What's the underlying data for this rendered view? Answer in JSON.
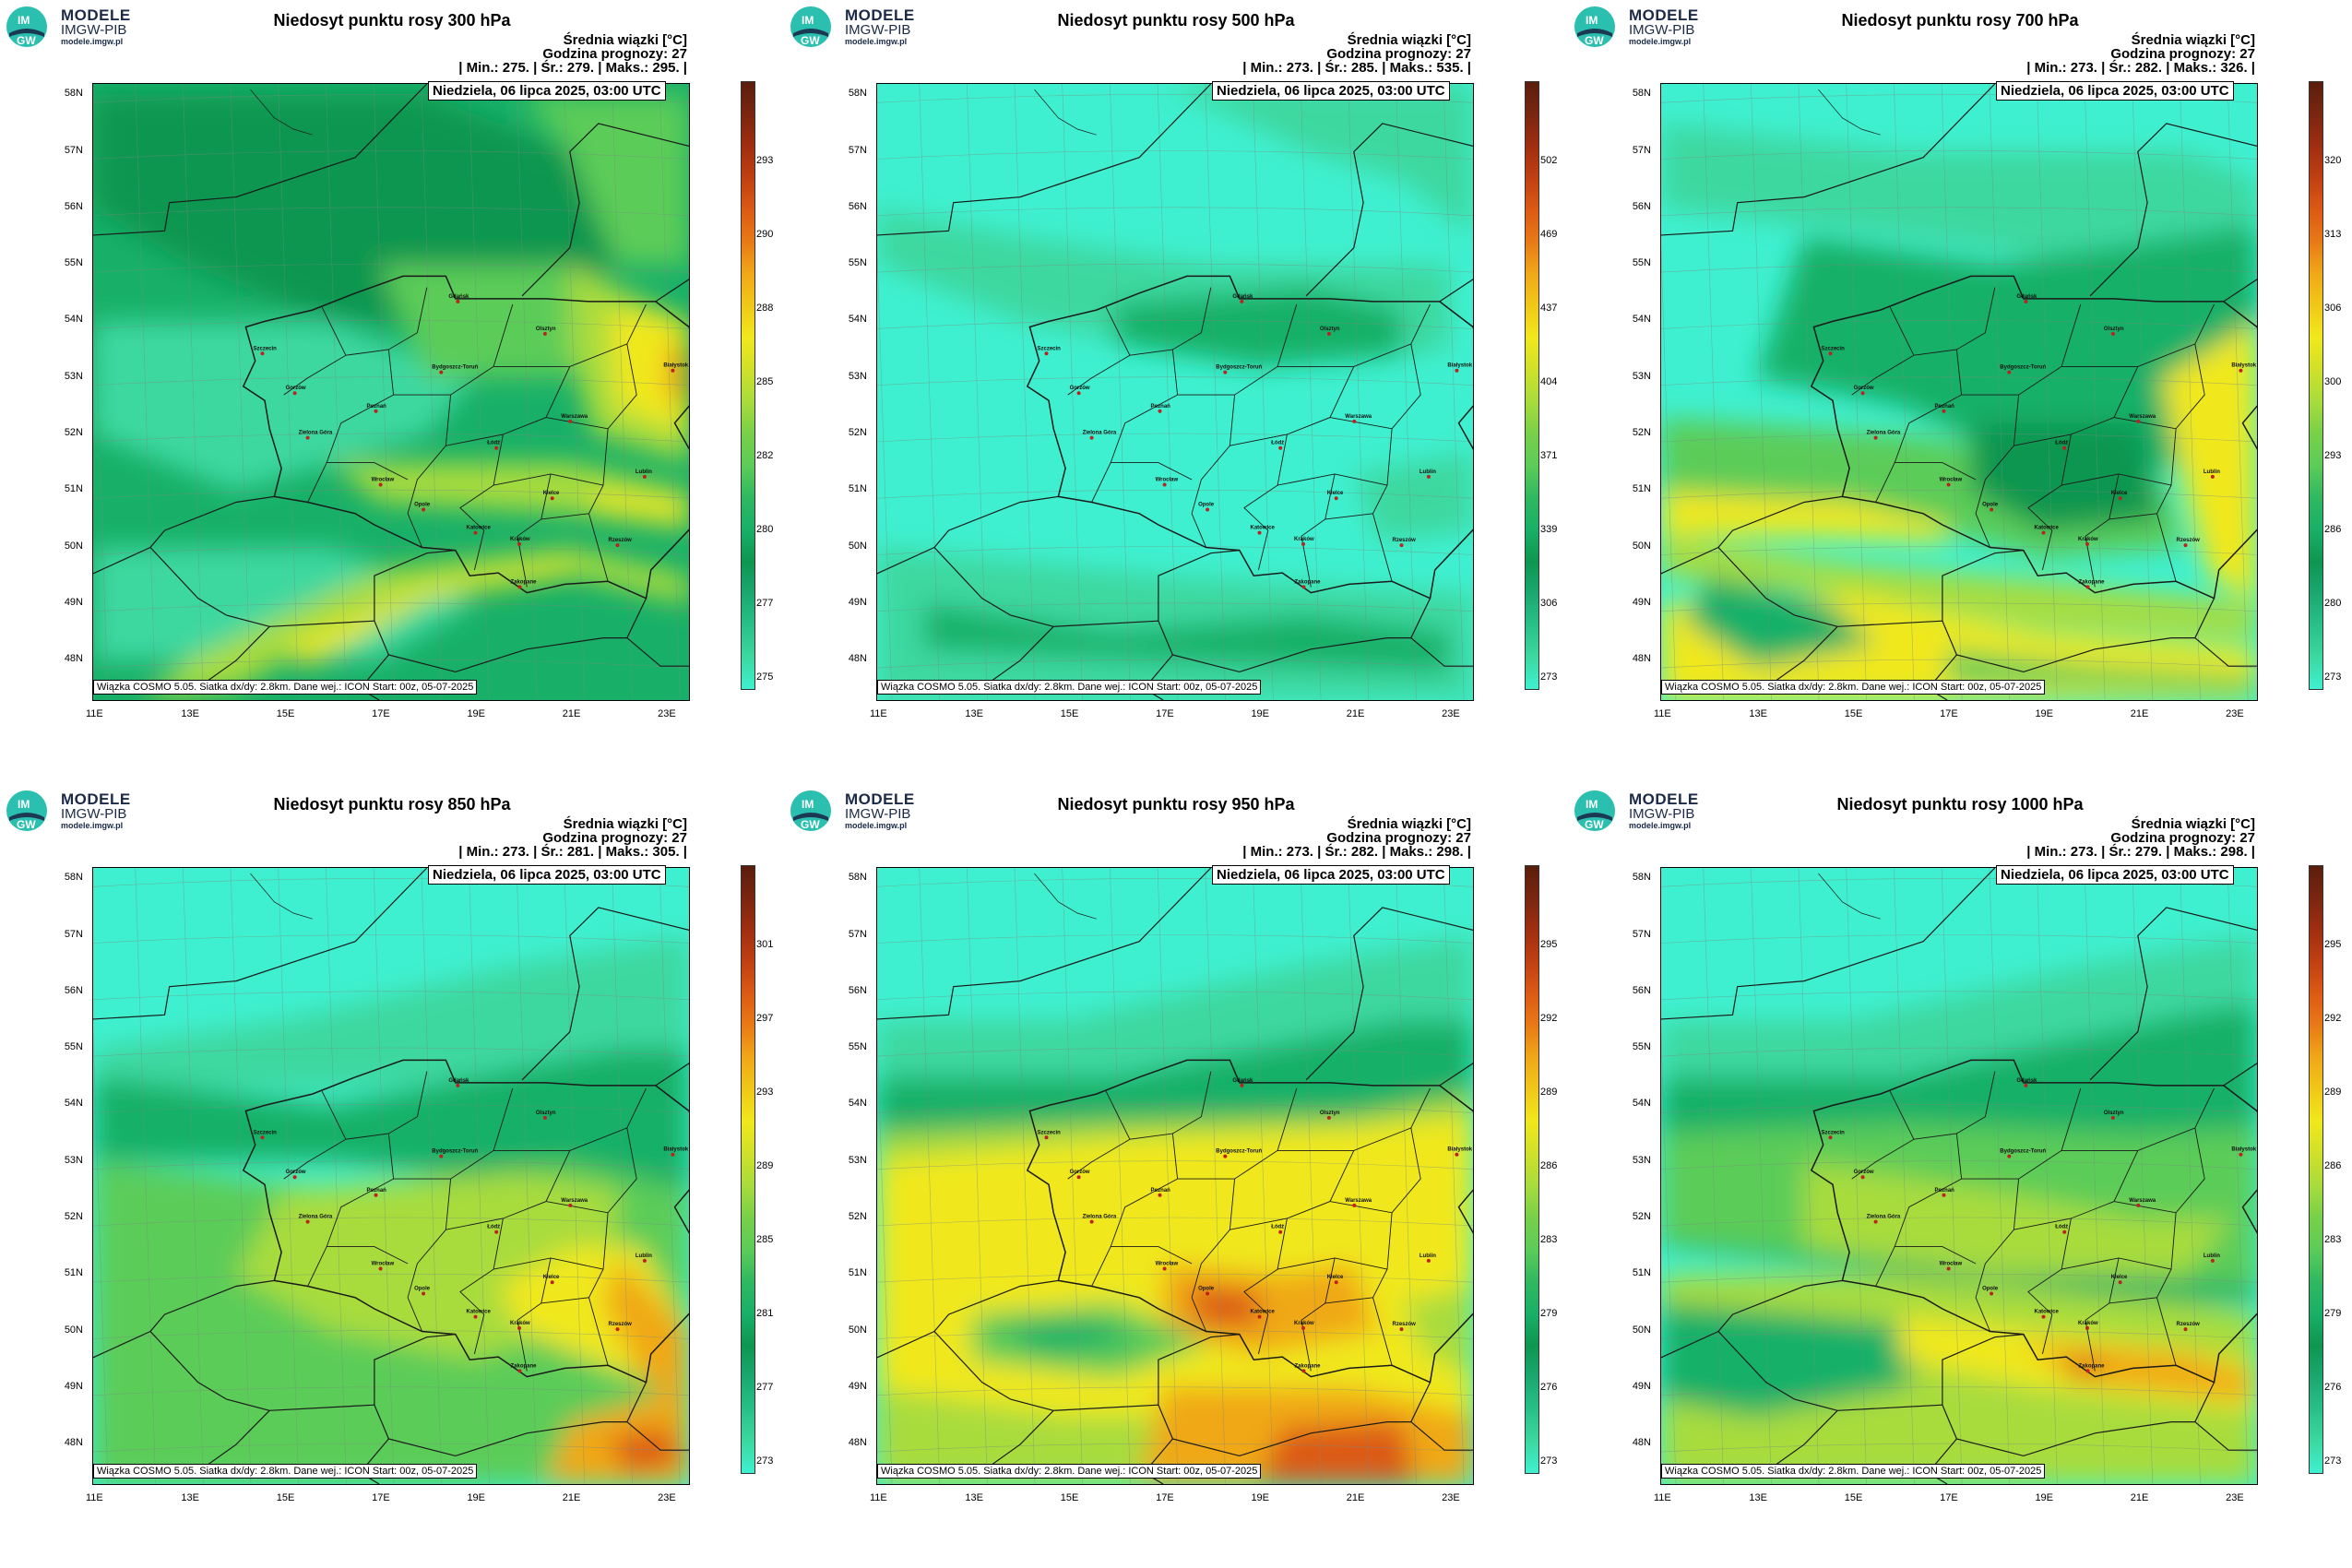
{
  "logo": {
    "mark_top": "IM",
    "mark_bottom": "GW",
    "title": "MODELE",
    "subtitle": "IMGW-PIB",
    "url": "modele.imgw.pl"
  },
  "common": {
    "date": "Niedziela, 06 lipca 2025, 03:00 UTC",
    "unit_line": "Średnia wiązki [°C]",
    "forecast_hour": "Godzina prognozy: 27",
    "footer": "Wiązka COSMO 5.05. Siatka dx/dy: 2.8km. Dane wej.: ICON Start: 00z, 05-07-2025",
    "lat_labels": [
      "58N",
      "57N",
      "56N",
      "55N",
      "54N",
      "53N",
      "52N",
      "51N",
      "50N",
      "49N",
      "48N"
    ],
    "lon_labels": [
      "11E",
      "13E",
      "15E",
      "17E",
      "19E",
      "21E",
      "23E"
    ]
  },
  "cities": [
    {
      "name": "Gdańsk",
      "lon": 18.65,
      "lat": 54.35
    },
    {
      "name": "Olsztyn",
      "lon": 20.48,
      "lat": 53.78
    },
    {
      "name": "Białystok",
      "lon": 23.16,
      "lat": 53.13
    },
    {
      "name": "Szczecin",
      "lon": 14.55,
      "lat": 53.43
    },
    {
      "name": "Bydgoszcz-Toruń",
      "lon": 18.3,
      "lat": 53.1
    },
    {
      "name": "Gorzów",
      "lon": 15.23,
      "lat": 52.73
    },
    {
      "name": "Poznań",
      "lon": 16.93,
      "lat": 52.41
    },
    {
      "name": "Warszawa",
      "lon": 21.01,
      "lat": 52.23
    },
    {
      "name": "Zielona Góra",
      "lon": 15.5,
      "lat": 51.94
    },
    {
      "name": "Łódź",
      "lon": 19.46,
      "lat": 51.76
    },
    {
      "name": "Lublin",
      "lon": 22.57,
      "lat": 51.25
    },
    {
      "name": "Wrocław",
      "lon": 17.03,
      "lat": 51.11
    },
    {
      "name": "Kielce",
      "lon": 20.63,
      "lat": 50.87
    },
    {
      "name": "Opole",
      "lon": 17.93,
      "lat": 50.67
    },
    {
      "name": "Katowice",
      "lon": 19.02,
      "lat": 50.26
    },
    {
      "name": "Kraków",
      "lon": 19.94,
      "lat": 50.06
    },
    {
      "name": "Rzeszów",
      "lon": 22.0,
      "lat": 50.04
    },
    {
      "name": "Zakopane",
      "lon": 19.95,
      "lat": 49.3
    }
  ],
  "panels": [
    {
      "title": "Niedosyt punktu rosy 300 hPa",
      "stats": "| Min.: 275. | Śr.: 279. | Maks.: 295. |",
      "cbar_ticks": [
        "293",
        "290",
        "288",
        "285",
        "282",
        "280",
        "277",
        "275"
      ],
      "scheme": "p300"
    },
    {
      "title": "Niedosyt punktu rosy 500 hPa",
      "stats": "| Min.: 273. | Śr.: 285. | Maks.: 535. |",
      "cbar_ticks": [
        "502",
        "469",
        "437",
        "404",
        "371",
        "339",
        "306",
        "273"
      ],
      "scheme": "p500"
    },
    {
      "title": "Niedosyt punktu rosy 700 hPa",
      "stats": "| Min.: 273. | Śr.: 282. | Maks.: 326. |",
      "cbar_ticks": [
        "320",
        "313",
        "306",
        "300",
        "293",
        "286",
        "280",
        "273"
      ],
      "scheme": "p700"
    },
    {
      "title": "Niedosyt punktu rosy 850 hPa",
      "stats": "| Min.: 273. | Śr.: 281. | Maks.: 305. |",
      "cbar_ticks": [
        "301",
        "297",
        "293",
        "289",
        "285",
        "281",
        "277",
        "273"
      ],
      "scheme": "p850"
    },
    {
      "title": "Niedosyt punktu rosy 950 hPa",
      "stats": "| Min.: 273. | Śr.: 282. | Maks.: 298. |",
      "cbar_ticks": [
        "295",
        "292",
        "289",
        "286",
        "283",
        "279",
        "276",
        "273"
      ],
      "scheme": "p950"
    },
    {
      "title": "Niedosyt punktu rosy 1000 hPa",
      "stats": "| Min.: 273. | Śr.: 279. | Maks.: 298. |",
      "cbar_ticks": [
        "295",
        "292",
        "289",
        "286",
        "283",
        "279",
        "276",
        "273"
      ],
      "scheme": "p1000"
    }
  ],
  "palette": {
    "cyan": "#3ff0d0",
    "teal": "#3cd8a0",
    "green": "#18b068",
    "green_dark": "#0e9650",
    "green_light": "#5ccc58",
    "lime": "#a8dc3c",
    "yellow": "#f0e81c",
    "orange": "#f0a818",
    "red": "#dc5a14",
    "red_dark": "#a02e10",
    "brown": "#5a1e0c",
    "border": "#1a1a1a",
    "city": "#c02020"
  }
}
